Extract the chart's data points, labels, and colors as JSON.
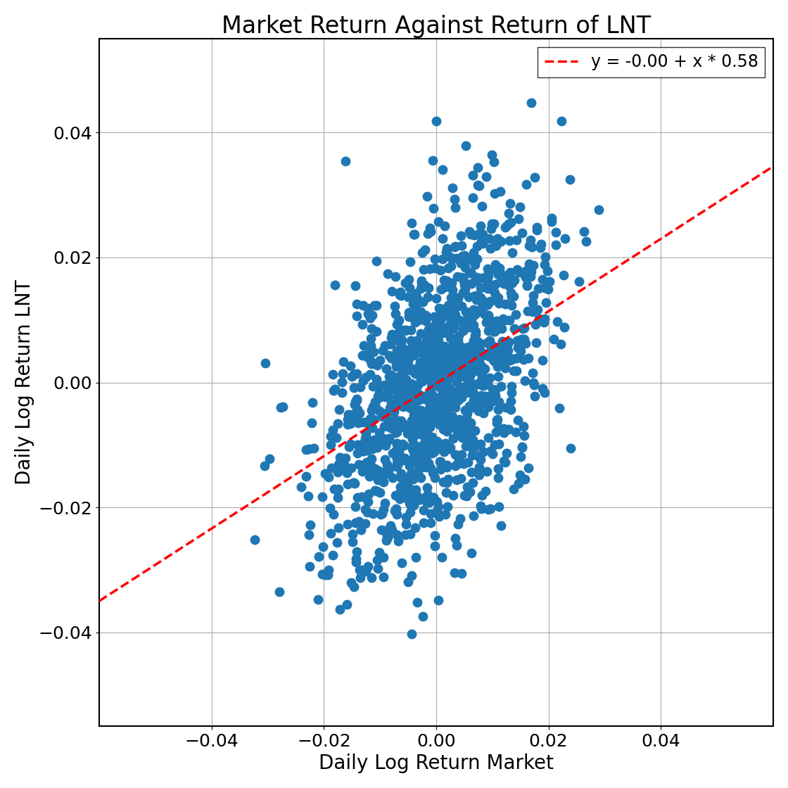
{
  "title": "Market Return Against Return of LNT",
  "xlabel": "Daily Log Return Market",
  "ylabel": "Daily Log Return LNT",
  "xlim": [
    -0.06,
    0.06
  ],
  "ylim": [
    -0.055,
    0.055
  ],
  "xticks": [
    -0.04,
    -0.02,
    0.0,
    0.02,
    0.04
  ],
  "yticks": [
    -0.04,
    -0.02,
    0.0,
    0.02,
    0.04
  ],
  "scatter_color": "#1f77b4",
  "line_color": "#ff0000",
  "line_intercept": -0.0002,
  "line_slope": 0.58,
  "legend_label": "y = -0.00 + x * 0.58",
  "n_points": 1258,
  "seed": 7,
  "market_std": 0.01,
  "lnt_noise_std": 0.012,
  "title_fontsize": 24,
  "label_fontsize": 20,
  "tick_fontsize": 18,
  "legend_fontsize": 17,
  "marker_size": 100,
  "marker_alpha": 1.0,
  "background_color": "#ffffff",
  "grid_color": "#aaaaaa",
  "figwidth": 11.2,
  "figheight": 11.2,
  "dpi": 100
}
